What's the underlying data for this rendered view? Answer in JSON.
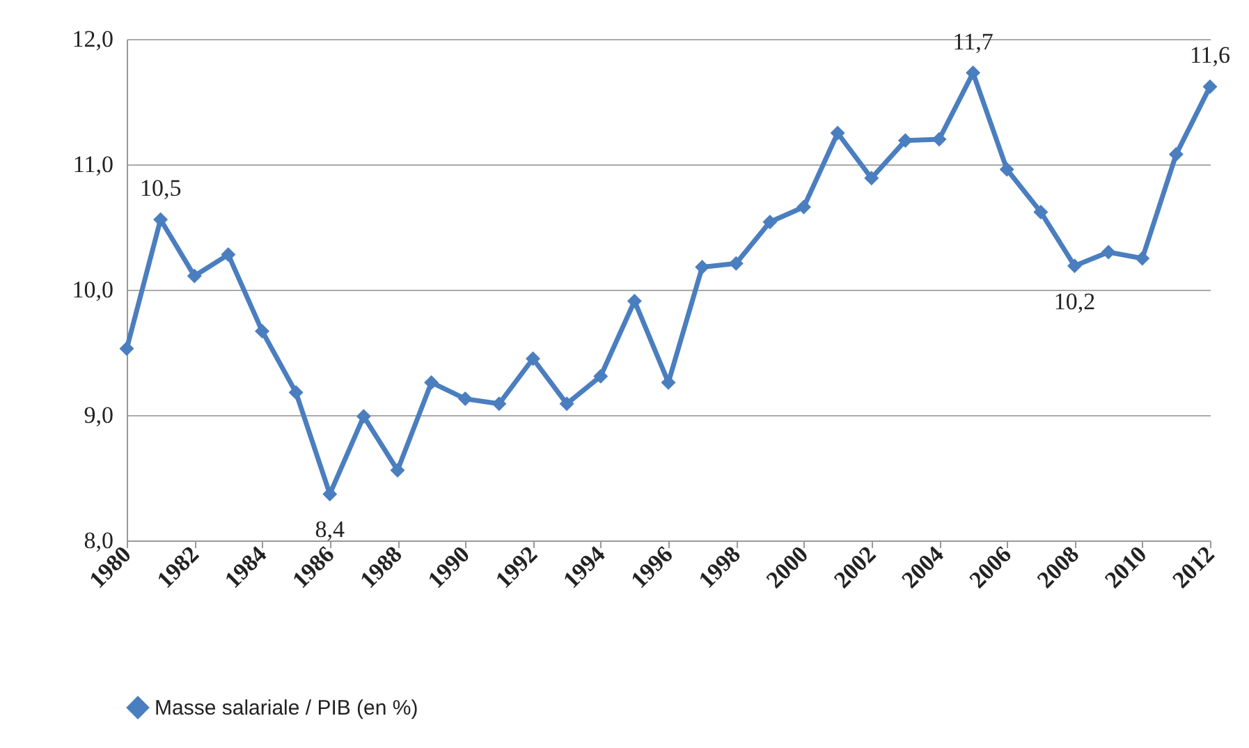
{
  "chart_data": {
    "type": "line",
    "x": [
      1980,
      1981,
      1982,
      1983,
      1984,
      1985,
      1986,
      1987,
      1988,
      1989,
      1990,
      1991,
      1992,
      1993,
      1994,
      1995,
      1996,
      1997,
      1998,
      1999,
      2000,
      2001,
      2002,
      2003,
      2004,
      2005,
      2006,
      2007,
      2008,
      2009,
      2010,
      2011,
      2012
    ],
    "series": [
      {
        "name": "Masse salariale / PIB (en %)",
        "color": "#4a7ebf",
        "values": [
          9.53,
          10.56,
          10.11,
          10.28,
          9.67,
          9.18,
          8.37,
          8.99,
          8.56,
          9.26,
          9.13,
          9.09,
          9.45,
          9.09,
          9.31,
          9.91,
          9.26,
          10.18,
          10.21,
          10.54,
          10.66,
          11.25,
          10.89,
          11.19,
          11.2,
          11.73,
          10.96,
          10.62,
          10.19,
          10.3,
          10.25,
          11.08,
          11.62
        ]
      }
    ],
    "xlim": [
      1980,
      2012
    ],
    "xticks": [
      1980,
      1982,
      1984,
      1986,
      1988,
      1990,
      1992,
      1994,
      1996,
      1998,
      2000,
      2002,
      2004,
      2006,
      2008,
      2010,
      2012
    ],
    "ylim": [
      8,
      12
    ],
    "yticks": [
      {
        "value": 8,
        "label": "8,0"
      },
      {
        "value": 9,
        "label": "9,0"
      },
      {
        "value": 10,
        "label": "10,0"
      },
      {
        "value": 11,
        "label": "11,0"
      },
      {
        "value": 12,
        "label": "12,0"
      }
    ],
    "grid": "y",
    "legend": "bottom",
    "marker": "diamond",
    "line_style": "solid",
    "annotations": [
      {
        "text": "10,5",
        "x": 1981,
        "y": 10.56
      },
      {
        "text": "8,4",
        "x": 1986,
        "y": 8.37
      },
      {
        "text": "11,7",
        "x": 2005,
        "y": 11.73
      },
      {
        "text": "10,2",
        "x": 2008,
        "y": 10.19
      },
      {
        "text": "11,6",
        "x": 2012,
        "y": 11.62
      }
    ]
  }
}
